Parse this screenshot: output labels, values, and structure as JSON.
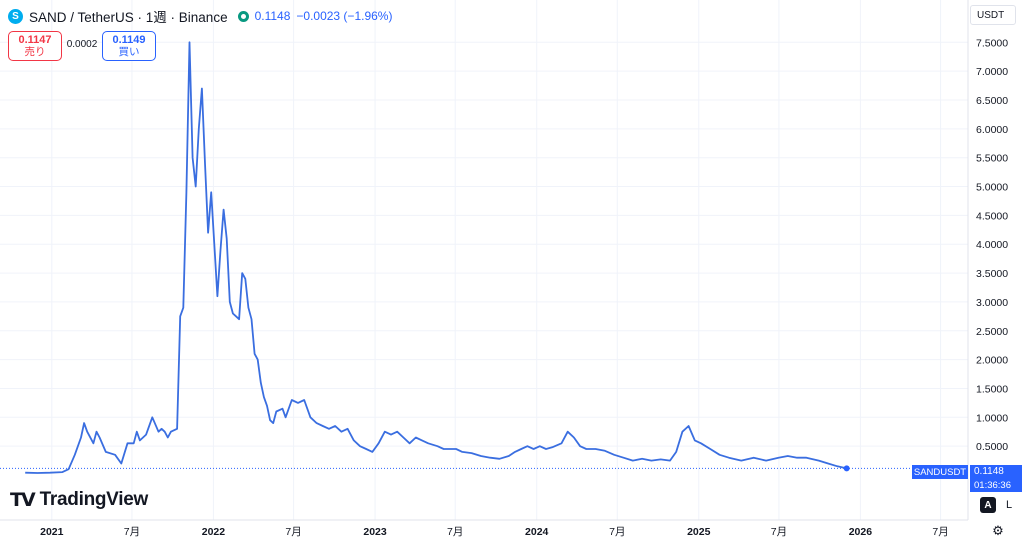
{
  "header": {
    "symbol_icon": "sand-coin-icon",
    "symbol_letter": "S",
    "title": "SAND / TetherUS · 1週 · Binance",
    "last": "0.1148",
    "change": "−0.0023 (−1.96%)",
    "status_color": "#089981"
  },
  "trade": {
    "sell_price": "0.1147",
    "sell_label": "売り",
    "spread": "0.0002",
    "buy_price": "0.1149",
    "buy_label": "買い"
  },
  "currency": "USDT",
  "price_tag": {
    "symbol": "SANDUSDT",
    "price": "0.1148",
    "countdown": "01:36:36"
  },
  "branding": "TradingView",
  "controls": {
    "auto": "A",
    "log": "L",
    "settings_icon": "gear-icon"
  },
  "colors": {
    "line": "#3a6ee0",
    "accent": "#2962ff",
    "sell": "#f23645",
    "grid": "#f0f3fa"
  },
  "chart_data": {
    "type": "line",
    "series": [
      {
        "values": [
          [
            "2020-11-02",
            0.04
          ],
          [
            "2020-11-30",
            0.035
          ],
          [
            "2020-12-28",
            0.04
          ],
          [
            "2021-01-25",
            0.05
          ],
          [
            "2021-02-08",
            0.1
          ],
          [
            "2021-02-22",
            0.35
          ],
          [
            "2021-03-08",
            0.65
          ],
          [
            "2021-03-15",
            0.9
          ],
          [
            "2021-03-22",
            0.75
          ],
          [
            "2021-04-05",
            0.55
          ],
          [
            "2021-04-12",
            0.75
          ],
          [
            "2021-04-19",
            0.65
          ],
          [
            "2021-05-03",
            0.4
          ],
          [
            "2021-05-24",
            0.35
          ],
          [
            "2021-06-07",
            0.2
          ],
          [
            "2021-06-21",
            0.55
          ],
          [
            "2021-07-05",
            0.55
          ],
          [
            "2021-07-12",
            0.75
          ],
          [
            "2021-07-19",
            0.6
          ],
          [
            "2021-08-02",
            0.7
          ],
          [
            "2021-08-16",
            1.0
          ],
          [
            "2021-08-30",
            0.75
          ],
          [
            "2021-09-06",
            0.8
          ],
          [
            "2021-09-13",
            0.75
          ],
          [
            "2021-09-20",
            0.65
          ],
          [
            "2021-09-27",
            0.75
          ],
          [
            "2021-10-11",
            0.8
          ],
          [
            "2021-10-18",
            2.75
          ],
          [
            "2021-10-25",
            2.9
          ],
          [
            "2021-11-01",
            4.9
          ],
          [
            "2021-11-08",
            7.5
          ],
          [
            "2021-11-15",
            5.5
          ],
          [
            "2021-11-22",
            5.0
          ],
          [
            "2021-11-29",
            6.0
          ],
          [
            "2021-12-06",
            6.7
          ],
          [
            "2021-12-13",
            5.4
          ],
          [
            "2021-12-20",
            4.2
          ],
          [
            "2021-12-27",
            4.9
          ],
          [
            "2022-01-03",
            4.0
          ],
          [
            "2022-01-10",
            3.1
          ],
          [
            "2022-01-17",
            3.9
          ],
          [
            "2022-01-24",
            4.6
          ],
          [
            "2022-01-31",
            4.1
          ],
          [
            "2022-02-07",
            3.0
          ],
          [
            "2022-02-14",
            2.8
          ],
          [
            "2022-02-21",
            2.75
          ],
          [
            "2022-02-28",
            2.7
          ],
          [
            "2022-03-07",
            3.5
          ],
          [
            "2022-03-14",
            3.4
          ],
          [
            "2022-03-21",
            2.9
          ],
          [
            "2022-03-28",
            2.7
          ],
          [
            "2022-04-04",
            2.1
          ],
          [
            "2022-04-11",
            2.0
          ],
          [
            "2022-04-18",
            1.6
          ],
          [
            "2022-04-25",
            1.35
          ],
          [
            "2022-05-02",
            1.2
          ],
          [
            "2022-05-09",
            0.95
          ],
          [
            "2022-05-16",
            0.9
          ],
          [
            "2022-05-23",
            1.1
          ],
          [
            "2022-06-06",
            1.15
          ],
          [
            "2022-06-13",
            1.0
          ],
          [
            "2022-06-27",
            1.3
          ],
          [
            "2022-07-11",
            1.25
          ],
          [
            "2022-07-25",
            1.3
          ],
          [
            "2022-08-08",
            1.0
          ],
          [
            "2022-08-22",
            0.9
          ],
          [
            "2022-09-05",
            0.85
          ],
          [
            "2022-09-19",
            0.8
          ],
          [
            "2022-10-03",
            0.85
          ],
          [
            "2022-10-17",
            0.75
          ],
          [
            "2022-10-31",
            0.8
          ],
          [
            "2022-11-14",
            0.6
          ],
          [
            "2022-11-28",
            0.5
          ],
          [
            "2022-12-12",
            0.45
          ],
          [
            "2022-12-26",
            0.4
          ],
          [
            "2023-01-09",
            0.55
          ],
          [
            "2023-01-23",
            0.75
          ],
          [
            "2023-02-06",
            0.7
          ],
          [
            "2023-02-20",
            0.75
          ],
          [
            "2023-03-06",
            0.65
          ],
          [
            "2023-03-20",
            0.55
          ],
          [
            "2023-04-03",
            0.65
          ],
          [
            "2023-04-17",
            0.6
          ],
          [
            "2023-05-01",
            0.55
          ],
          [
            "2023-05-22",
            0.5
          ],
          [
            "2023-06-05",
            0.45
          ],
          [
            "2023-06-19",
            0.45
          ],
          [
            "2023-07-03",
            0.45
          ],
          [
            "2023-07-17",
            0.4
          ],
          [
            "2023-08-07",
            0.38
          ],
          [
            "2023-08-28",
            0.33
          ],
          [
            "2023-09-18",
            0.3
          ],
          [
            "2023-10-09",
            0.28
          ],
          [
            "2023-10-30",
            0.33
          ],
          [
            "2023-11-13",
            0.4
          ],
          [
            "2023-11-27",
            0.45
          ],
          [
            "2023-12-11",
            0.5
          ],
          [
            "2023-12-25",
            0.45
          ],
          [
            "2024-01-08",
            0.5
          ],
          [
            "2024-01-22",
            0.45
          ],
          [
            "2024-02-05",
            0.48
          ],
          [
            "2024-02-26",
            0.55
          ],
          [
            "2024-03-11",
            0.75
          ],
          [
            "2024-03-25",
            0.65
          ],
          [
            "2024-04-08",
            0.5
          ],
          [
            "2024-04-22",
            0.45
          ],
          [
            "2024-05-13",
            0.45
          ],
          [
            "2024-06-03",
            0.42
          ],
          [
            "2024-06-24",
            0.35
          ],
          [
            "2024-07-15",
            0.3
          ],
          [
            "2024-08-05",
            0.25
          ],
          [
            "2024-08-26",
            0.28
          ],
          [
            "2024-09-16",
            0.25
          ],
          [
            "2024-10-07",
            0.27
          ],
          [
            "2024-10-28",
            0.25
          ],
          [
            "2024-11-11",
            0.4
          ],
          [
            "2024-11-25",
            0.75
          ],
          [
            "2024-12-09",
            0.85
          ],
          [
            "2024-12-23",
            0.6
          ],
          [
            "2025-01-06",
            0.55
          ],
          [
            "2025-01-27",
            0.45
          ],
          [
            "2025-02-17",
            0.35
          ],
          [
            "2025-03-10",
            0.3
          ],
          [
            "2025-04-07",
            0.25
          ],
          [
            "2025-05-05",
            0.3
          ],
          [
            "2025-06-02",
            0.25
          ],
          [
            "2025-06-30",
            0.3
          ],
          [
            "2025-07-21",
            0.33
          ],
          [
            "2025-08-11",
            0.3
          ],
          [
            "2025-09-01",
            0.3
          ],
          [
            "2025-09-29",
            0.25
          ],
          [
            "2025-10-20",
            0.2
          ],
          [
            "2025-11-10",
            0.15
          ],
          [
            "2025-12-01",
            0.1148
          ]
        ]
      }
    ],
    "x_axis": {
      "type": "time",
      "range": [
        "2020-09-06",
        "2026-09-01"
      ],
      "ticks": [
        {
          "date": "2021-01-01",
          "label": "2021"
        },
        {
          "date": "2021-07-01",
          "label": "7月"
        },
        {
          "date": "2022-01-01",
          "label": "2022"
        },
        {
          "date": "2022-07-01",
          "label": "7月"
        },
        {
          "date": "2023-01-01",
          "label": "2023"
        },
        {
          "date": "2023-07-01",
          "label": "7月"
        },
        {
          "date": "2024-01-01",
          "label": "2024"
        },
        {
          "date": "2024-07-01",
          "label": "7月"
        },
        {
          "date": "2025-01-01",
          "label": "2025"
        },
        {
          "date": "2025-07-01",
          "label": "7月"
        },
        {
          "date": "2026-01-01",
          "label": "2026"
        },
        {
          "date": "2026-07-01",
          "label": "7月"
        }
      ]
    },
    "y_axis": {
      "ylim": [
        0.0,
        7.8
      ],
      "position": "right",
      "ticks": [
        {
          "value": 0.5,
          "label": "0.5000"
        },
        {
          "value": 1.0,
          "label": "1.0000"
        },
        {
          "value": 1.5,
          "label": "1.5000"
        },
        {
          "value": 2.0,
          "label": "2.0000"
        },
        {
          "value": 2.5,
          "label": "2.5000"
        },
        {
          "value": 3.0,
          "label": "3.0000"
        },
        {
          "value": 3.5,
          "label": "3.5000"
        },
        {
          "value": 4.0,
          "label": "4.0000"
        },
        {
          "value": 4.5,
          "label": "4.5000"
        },
        {
          "value": 5.0,
          "label": "5.0000"
        },
        {
          "value": 5.5,
          "label": "5.5000"
        },
        {
          "value": 6.0,
          "label": "6.0000"
        },
        {
          "value": 6.5,
          "label": "6.5000"
        },
        {
          "value": 7.0,
          "label": "7.0000"
        },
        {
          "value": 7.5,
          "label": "7.5000"
        }
      ]
    },
    "grid": true,
    "last_value": 0.1148
  }
}
